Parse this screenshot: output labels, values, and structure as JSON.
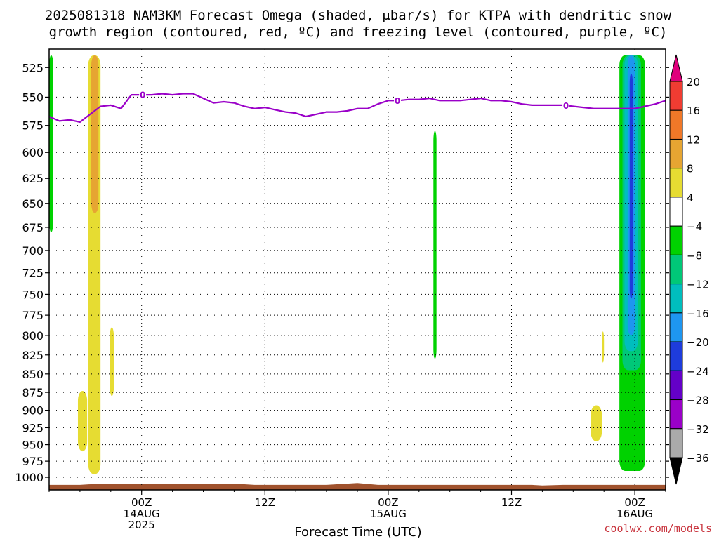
{
  "chart_data": {
    "type": "heatmap",
    "title_line1": "2025081318 NAM3KM Forecast Omega (shaded, μbar/s) for KTPA with dendritic snow",
    "title_line2": "growth region (contoured, red, ºC) and freezing level (contoured, purple, ºC)",
    "xlabel": "Forecast Time (UTC)",
    "x_unit": "forecast hour",
    "xlim": [
      -3,
      57
    ],
    "x_ticks": [
      {
        "hour": 6,
        "line1": "00Z",
        "line2": "14AUG",
        "line3": "2025"
      },
      {
        "hour": 18,
        "line1": "12Z",
        "line2": "",
        "line3": ""
      },
      {
        "hour": 30,
        "line1": "00Z",
        "line2": "15AUG",
        "line3": ""
      },
      {
        "hour": 42,
        "line1": "12Z",
        "line2": "",
        "line3": ""
      },
      {
        "hour": 54,
        "line1": "00Z",
        "line2": "16AUG",
        "line3": ""
      }
    ],
    "y_unit": "hPa",
    "ylim": [
      1020,
      510
    ],
    "y_scale": "log",
    "y_ticks": [
      525,
      550,
      575,
      600,
      625,
      650,
      675,
      700,
      725,
      750,
      775,
      800,
      825,
      850,
      875,
      900,
      925,
      950,
      975,
      1000
    ],
    "grid": "dotted",
    "colorbar": {
      "ticks": [
        "20",
        "16",
        "12",
        "8",
        "4",
        "−4",
        "−8",
        "−12",
        "−16",
        "−20",
        "−24",
        "−28",
        "−32",
        "−36"
      ],
      "colors_top_to_bottom": [
        "#e0007c",
        "#f03c32",
        "#f07828",
        "#e6a532",
        "#e6dc32",
        "#ffffff",
        "#00d200",
        "#00c878",
        "#00bebe",
        "#1e96f0",
        "#1e3cdc",
        "#6400c8",
        "#9a00c8",
        "#aaaaaa",
        "#000000"
      ]
    },
    "omega_regions": [
      {
        "name": "yellow-column-a",
        "color": "#e6dc32",
        "x0": 0.8,
        "x1": 2.0,
        "p_top": 515,
        "p_bottom": 995
      },
      {
        "name": "orange-core-a",
        "color": "#e6a532",
        "x0": 1.1,
        "x1": 1.8,
        "p_top": 515,
        "p_bottom": 660
      },
      {
        "name": "yellow-blob-b",
        "color": "#e6dc32",
        "x0": -0.2,
        "x1": 0.7,
        "p_top": 873,
        "p_bottom": 960
      },
      {
        "name": "yellow-streak-c",
        "color": "#e6dc32",
        "x0": 2.9,
        "x1": 3.3,
        "p_top": 790,
        "p_bottom": 880
      },
      {
        "name": "green-edge-d",
        "color": "#00d200",
        "x0": -3.0,
        "x1": -2.6,
        "p_top": 515,
        "p_bottom": 680
      },
      {
        "name": "green-streak-e",
        "color": "#00d200",
        "x0": 34.4,
        "x1": 34.7,
        "p_top": 580,
        "p_bottom": 830
      },
      {
        "name": "yellow-blob-f",
        "color": "#e6dc32",
        "x0": 49.7,
        "x1": 50.8,
        "p_top": 893,
        "p_bottom": 945
      },
      {
        "name": "yellow-streak-g",
        "color": "#e6dc32",
        "x0": 50.8,
        "x1": 51.0,
        "p_top": 795,
        "p_bottom": 835
      },
      {
        "name": "green-column-h",
        "color": "#00d200",
        "x0": 52.5,
        "x1": 55.0,
        "p_top": 515,
        "p_bottom": 990
      },
      {
        "name": "teal-column-h",
        "color": "#00c878",
        "x0": 52.8,
        "x1": 54.6,
        "p_top": 515,
        "p_bottom": 845
      },
      {
        "name": "cyan-column-h",
        "color": "#00bebe",
        "x0": 53.0,
        "x1": 54.3,
        "p_top": 515,
        "p_bottom": 820
      },
      {
        "name": "lightblue-column-h",
        "color": "#1e96f0",
        "x0": 53.3,
        "x1": 54.0,
        "p_top": 515,
        "p_bottom": 800
      },
      {
        "name": "blue-core-h",
        "color": "#1e3cdc",
        "x0": 53.5,
        "x1": 53.8,
        "p_top": 530,
        "p_bottom": 755
      }
    ],
    "freezing_level": {
      "label": "0",
      "label_hours": [
        6.1,
        30.9,
        47.3
      ],
      "series": [
        {
          "hour": -3,
          "p": 567
        },
        {
          "hour": -2,
          "p": 571
        },
        {
          "hour": -1,
          "p": 570
        },
        {
          "hour": 0,
          "p": 572
        },
        {
          "hour": 1,
          "p": 565
        },
        {
          "hour": 2,
          "p": 558
        },
        {
          "hour": 3,
          "p": 557
        },
        {
          "hour": 4,
          "p": 560
        },
        {
          "hour": 5,
          "p": 548
        },
        {
          "hour": 6,
          "p": 548
        },
        {
          "hour": 7,
          "p": 548
        },
        {
          "hour": 8,
          "p": 547
        },
        {
          "hour": 9,
          "p": 548
        },
        {
          "hour": 10,
          "p": 547
        },
        {
          "hour": 11,
          "p": 547
        },
        {
          "hour": 12,
          "p": 551
        },
        {
          "hour": 13,
          "p": 555
        },
        {
          "hour": 14,
          "p": 554
        },
        {
          "hour": 15,
          "p": 555
        },
        {
          "hour": 16,
          "p": 558
        },
        {
          "hour": 17,
          "p": 560
        },
        {
          "hour": 18,
          "p": 559
        },
        {
          "hour": 19,
          "p": 561
        },
        {
          "hour": 20,
          "p": 563
        },
        {
          "hour": 21,
          "p": 564
        },
        {
          "hour": 22,
          "p": 567
        },
        {
          "hour": 23,
          "p": 565
        },
        {
          "hour": 24,
          "p": 563
        },
        {
          "hour": 25,
          "p": 563
        },
        {
          "hour": 26,
          "p": 562
        },
        {
          "hour": 27,
          "p": 560
        },
        {
          "hour": 28,
          "p": 560
        },
        {
          "hour": 29,
          "p": 556
        },
        {
          "hour": 30,
          "p": 553
        },
        {
          "hour": 31,
          "p": 553
        },
        {
          "hour": 32,
          "p": 552
        },
        {
          "hour": 33,
          "p": 552
        },
        {
          "hour": 34,
          "p": 551
        },
        {
          "hour": 35,
          "p": 553
        },
        {
          "hour": 36,
          "p": 553
        },
        {
          "hour": 37,
          "p": 553
        },
        {
          "hour": 38,
          "p": 552
        },
        {
          "hour": 39,
          "p": 551
        },
        {
          "hour": 40,
          "p": 553
        },
        {
          "hour": 41,
          "p": 553
        },
        {
          "hour": 42,
          "p": 554
        },
        {
          "hour": 43,
          "p": 556
        },
        {
          "hour": 44,
          "p": 557
        },
        {
          "hour": 45,
          "p": 557
        },
        {
          "hour": 46,
          "p": 557
        },
        {
          "hour": 47,
          "p": 557
        },
        {
          "hour": 48,
          "p": 558
        },
        {
          "hour": 49,
          "p": 559
        },
        {
          "hour": 50,
          "p": 560
        },
        {
          "hour": 51,
          "p": 560
        },
        {
          "hour": 52,
          "p": 560
        },
        {
          "hour": 53,
          "p": 560
        },
        {
          "hour": 54,
          "p": 560
        },
        {
          "hour": 55,
          "p": 558
        },
        {
          "hour": 56,
          "p": 556
        },
        {
          "hour": 57,
          "p": 553
        }
      ]
    },
    "terrain": {
      "color": "#a0522d",
      "series": [
        {
          "hour": -3,
          "p": 1012
        },
        {
          "hour": 0,
          "p": 1012
        },
        {
          "hour": 2,
          "p": 1010
        },
        {
          "hour": 6,
          "p": 1010
        },
        {
          "hour": 10,
          "p": 1010
        },
        {
          "hour": 15,
          "p": 1010
        },
        {
          "hour": 17,
          "p": 1012
        },
        {
          "hour": 24,
          "p": 1012
        },
        {
          "hour": 27,
          "p": 1009
        },
        {
          "hour": 29,
          "p": 1012
        },
        {
          "hour": 38,
          "p": 1012
        },
        {
          "hour": 44,
          "p": 1012
        },
        {
          "hour": 45,
          "p": 1013
        },
        {
          "hour": 47,
          "p": 1012
        },
        {
          "hour": 57,
          "p": 1012
        }
      ]
    }
  },
  "credit": "coolwx.com/models"
}
